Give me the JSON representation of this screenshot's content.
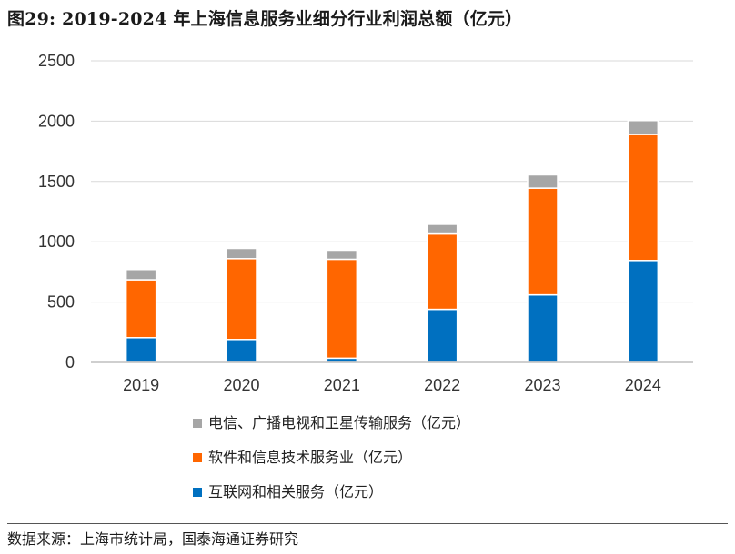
{
  "title": "图29: 2019-2024 年上海信息服务业细分行业利润总额（亿元）",
  "source": "数据来源：上海市统计局，国泰海通证券研究",
  "chart_data": {
    "type": "bar",
    "stacked": true,
    "categories": [
      "2019",
      "2020",
      "2021",
      "2022",
      "2023",
      "2024"
    ],
    "series": [
      {
        "name": "互联网和相关服务（亿元）",
        "color": "#0070c0",
        "values": [
          205,
          190,
          35,
          440,
          560,
          845
        ]
      },
      {
        "name": "软件和信息技术服务业（亿元）",
        "color": "#ff6600",
        "values": [
          480,
          670,
          820,
          625,
          885,
          1045
        ]
      },
      {
        "name": "电信、广播电视和卫星传输服务（亿元）",
        "color": "#a6a6a6",
        "values": [
          85,
          85,
          75,
          80,
          110,
          115
        ]
      }
    ],
    "ylim": [
      0,
      2500
    ],
    "yticks": [
      0,
      500,
      1000,
      1500,
      2000,
      2500
    ],
    "grid": true,
    "legend_position": "bottom",
    "legend_order": [
      2,
      1,
      0
    ]
  }
}
